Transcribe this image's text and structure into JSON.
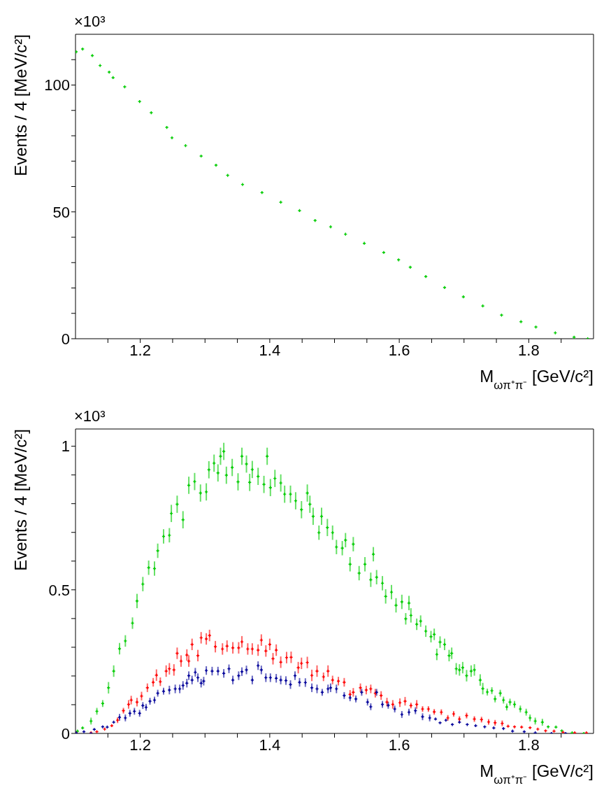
{
  "chart_data": [
    {
      "type": "scatter",
      "marker": "cross",
      "xlabel": "M$_{ωπ⁺π⁻}$ [GeV/c²]",
      "ylabel": "Events / 4 [MeV/c²]",
      "annotations": [
        "×10³"
      ],
      "xlim": [
        1.1,
        1.9
      ],
      "ylim": [
        0,
        120
      ],
      "xticks": [
        {
          "value": 1.15,
          "label": null
        },
        1.2,
        {
          "value": 1.25,
          "label": null
        },
        {
          "value": 1.3,
          "label": null
        },
        {
          "value": 1.35,
          "label": null
        },
        1.4,
        {
          "value": 1.45,
          "label": null
        },
        {
          "value": 1.5,
          "label": null
        },
        {
          "value": 1.55,
          "label": null
        },
        1.6,
        {
          "value": 1.65,
          "label": null
        },
        {
          "value": 1.7,
          "label": null
        },
        {
          "value": 1.75,
          "label": null
        },
        1.8,
        {
          "value": 1.85,
          "label": null
        }
      ],
      "yticks": [
        0,
        {
          "value": 10,
          "label": null
        },
        {
          "value": 20,
          "label": null
        },
        {
          "value": 30,
          "label": null
        },
        {
          "value": 40,
          "label": null
        },
        50,
        {
          "value": 60,
          "label": null
        },
        {
          "value": 70,
          "label": null
        },
        {
          "value": 80,
          "label": null
        },
        {
          "value": 90,
          "label": null
        },
        100,
        {
          "value": 110,
          "label": null
        }
      ],
      "series": [
        {
          "color": "#00cc00",
          "x": [
            1.101,
            1.111,
            1.126,
            1.138,
            1.152,
            1.158,
            1.176,
            1.199,
            1.217,
            1.241,
            1.249,
            1.27,
            1.294,
            1.317,
            1.335,
            1.358,
            1.388,
            1.417,
            1.446,
            1.47,
            1.494,
            1.517,
            1.546,
            1.576,
            1.599,
            1.617,
            1.641,
            1.67,
            1.699,
            1.729,
            1.758,
            1.788,
            1.811,
            1.841,
            1.87,
            1.891
          ],
          "values": [
            113.1,
            114.2,
            111.6,
            107.7,
            105.1,
            102.9,
            99.3,
            93.5,
            89.1,
            83.3,
            79.2,
            76.1,
            72.0,
            68.4,
            64.4,
            60.8,
            57.6,
            53.8,
            50.5,
            46.6,
            44.1,
            41.2,
            37.6,
            34.0,
            31.1,
            28.2,
            24.5,
            20.2,
            16.5,
            12.9,
            9.3,
            6.7,
            4.6,
            2.3,
            0.6,
            0
          ]
        }
      ]
    },
    {
      "type": "scatter",
      "marker": "cross",
      "xlabel": "M$_{ωπ⁺π⁻}$ [GeV/c²]",
      "ylabel": "Events / 4 [MeV/c²]",
      "annotations": [
        "×10³"
      ],
      "xlim": [
        1.1,
        1.9
      ],
      "ylim": [
        0,
        1.06
      ],
      "xticks": [
        {
          "value": 1.15,
          "label": null
        },
        1.2,
        {
          "value": 1.25,
          "label": null
        },
        {
          "value": 1.3,
          "label": null
        },
        {
          "value": 1.35,
          "label": null
        },
        1.4,
        {
          "value": 1.45,
          "label": null
        },
        {
          "value": 1.5,
          "label": null
        },
        {
          "value": 1.55,
          "label": null
        },
        1.6,
        {
          "value": 1.65,
          "label": null
        },
        {
          "value": 1.7,
          "label": null
        },
        {
          "value": 1.75,
          "label": null
        },
        1.8,
        {
          "value": 1.85,
          "label": null
        }
      ],
      "yticks": [
        0,
        {
          "value": 0.1,
          "label": null
        },
        {
          "value": 0.2,
          "label": null
        },
        {
          "value": 0.3,
          "label": null
        },
        {
          "value": 0.4,
          "label": null
        },
        0.5,
        {
          "value": 0.6,
          "label": null
        },
        {
          "value": 0.7,
          "label": null
        },
        {
          "value": 0.8,
          "label": null
        },
        {
          "value": 0.9,
          "label": null
        },
        1
      ],
      "series": [
        {
          "color": "#00cc00",
          "x": [
            1.103,
            1.111,
            1.124,
            1.133,
            1.142,
            1.151,
            1.159,
            1.168,
            1.177,
            1.188,
            1.195,
            1.204,
            1.213,
            1.222,
            1.227,
            1.236,
            1.245,
            1.248,
            1.257,
            1.266,
            1.275,
            1.284,
            1.293,
            1.302,
            1.306,
            1.314,
            1.32,
            1.324,
            1.329,
            1.333,
            1.342,
            1.351,
            1.357,
            1.364,
            1.369,
            1.373,
            1.382,
            1.391,
            1.396,
            1.401,
            1.408,
            1.417,
            1.423,
            1.432,
            1.44,
            1.449,
            1.458,
            1.462,
            1.467,
            1.476,
            1.48,
            1.489,
            1.497,
            1.503,
            1.512,
            1.517,
            1.524,
            1.529,
            1.538,
            1.547,
            1.556,
            1.56,
            1.565,
            1.574,
            1.579,
            1.588,
            1.595,
            1.604,
            1.61,
            1.615,
            1.618,
            1.627,
            1.633,
            1.641,
            1.649,
            1.654,
            1.658,
            1.663,
            1.67,
            1.677,
            1.681,
            1.688,
            1.693,
            1.698,
            1.704,
            1.711,
            1.716,
            1.725,
            1.729,
            1.736,
            1.743,
            1.748,
            1.756,
            1.761,
            1.766,
            1.771,
            1.778,
            1.787,
            1.796,
            1.802,
            1.81,
            1.821,
            1.83,
            1.842,
            1.851,
            1.867,
            1.885
          ],
          "values": [
            0.008,
            0.019,
            0.043,
            0.077,
            0.104,
            0.159,
            0.217,
            0.295,
            0.322,
            0.384,
            0.461,
            0.52,
            0.577,
            0.574,
            0.636,
            0.686,
            0.69,
            0.766,
            0.798,
            0.744,
            0.864,
            0.877,
            0.837,
            0.841,
            0.918,
            0.941,
            0.907,
            0.965,
            0.982,
            0.899,
            0.926,
            0.876,
            0.965,
            0.938,
            0.874,
            0.919,
            0.895,
            0.867,
            0.965,
            0.856,
            0.888,
            0.872,
            0.833,
            0.833,
            0.81,
            0.779,
            0.837,
            0.798,
            0.756,
            0.699,
            0.756,
            0.717,
            0.699,
            0.649,
            0.645,
            0.673,
            0.589,
            0.659,
            0.558,
            0.589,
            0.535,
            0.624,
            0.544,
            0.523,
            0.477,
            0.492,
            0.446,
            0.458,
            0.399,
            0.454,
            0.411,
            0.38,
            0.391,
            0.356,
            0.337,
            0.345,
            0.275,
            0.318,
            0.31,
            0.271,
            0.279,
            0.225,
            0.221,
            0.229,
            0.201,
            0.217,
            0.221,
            0.186,
            0.156,
            0.144,
            0.149,
            0.12,
            0.14,
            0.116,
            0.092,
            0.109,
            0.101,
            0.085,
            0.074,
            0.054,
            0.043,
            0.039,
            0.023,
            0.022,
            0.009,
            0.002,
            0
          ],
          "errors": [
            null,
            null,
            0.012,
            0.012,
            0.012,
            0.02,
            0.02,
            0.02,
            0.02,
            0.02,
            0.025,
            0.025,
            0.025,
            0.025,
            0.025,
            0.025,
            0.025,
            0.03,
            0.03,
            0.03,
            0.03,
            0.03,
            0.03,
            0.03,
            0.03,
            0.03,
            0.03,
            0.03,
            0.03,
            0.03,
            0.03,
            0.03,
            0.03,
            0.03,
            0.03,
            0.03,
            0.03,
            0.03,
            0.03,
            0.03,
            0.03,
            0.03,
            0.03,
            0.03,
            0.03,
            0.03,
            0.03,
            0.03,
            0.03,
            0.025,
            0.03,
            0.03,
            0.025,
            0.025,
            0.025,
            0.025,
            0.025,
            0.025,
            0.025,
            0.025,
            0.025,
            0.025,
            0.025,
            0.025,
            0.025,
            0.025,
            0.025,
            0.025,
            0.02,
            0.025,
            0.025,
            0.02,
            0.02,
            0.02,
            0.02,
            0.02,
            0.02,
            0.02,
            0.02,
            0.02,
            0.02,
            0.02,
            0.02,
            0.02,
            0.02,
            0.02,
            0.02,
            0.02,
            0.02,
            0.012,
            0.012,
            0.012,
            0.012,
            0.012,
            0.012,
            0.012,
            0.012,
            0.012,
            0.012,
            0.012,
            0.012,
            0.012,
            null,
            null,
            null,
            null,
            null
          ]
        },
        {
          "color": "#ff0000",
          "x": [
            1.101,
            1.124,
            1.133,
            1.145,
            1.156,
            1.165,
            1.174,
            1.182,
            1.186,
            1.195,
            1.202,
            1.211,
            1.22,
            1.225,
            1.231,
            1.24,
            1.245,
            1.252,
            1.257,
            1.263,
            1.272,
            1.275,
            1.28,
            1.289,
            1.294,
            1.302,
            1.307,
            1.316,
            1.327,
            1.334,
            1.343,
            1.352,
            1.357,
            1.366,
            1.373,
            1.382,
            1.387,
            1.394,
            1.4,
            1.405,
            1.41,
            1.417,
            1.426,
            1.433,
            1.444,
            1.449,
            1.458,
            1.465,
            1.473,
            1.483,
            1.49,
            1.497,
            1.506,
            1.515,
            1.524,
            1.529,
            1.54,
            1.549,
            1.556,
            1.563,
            1.572,
            1.581,
            1.59,
            1.601,
            1.609,
            1.618,
            1.627,
            1.636,
            1.645,
            1.654,
            1.665,
            1.675,
            1.684,
            1.693,
            1.704,
            1.716,
            1.727,
            1.738,
            1.748,
            1.759,
            1.768,
            1.778,
            1.789,
            1.802,
            1.814,
            1.826,
            1.839,
            1.853,
            1.871,
            1.889
          ],
          "values": [
            0.002,
            0.002,
            0.006,
            0.015,
            0.027,
            0.046,
            0.079,
            0.101,
            0.116,
            0.109,
            0.13,
            0.159,
            0.178,
            0.203,
            0.18,
            0.217,
            0.225,
            0.221,
            0.279,
            0.252,
            0.273,
            0.252,
            0.31,
            0.271,
            0.333,
            0.329,
            0.341,
            0.302,
            0.294,
            0.304,
            0.298,
            0.298,
            0.319,
            0.294,
            0.294,
            0.29,
            0.325,
            0.287,
            0.31,
            0.26,
            0.29,
            0.248,
            0.264,
            0.265,
            0.229,
            0.244,
            0.247,
            0.202,
            0.217,
            0.197,
            0.217,
            0.186,
            0.182,
            0.178,
            0.136,
            0.143,
            0.159,
            0.151,
            0.155,
            0.14,
            0.132,
            0.109,
            0.101,
            0.107,
            0.112,
            0.097,
            0.101,
            0.085,
            0.085,
            0.075,
            0.074,
            0.054,
            0.068,
            0.05,
            0.062,
            0.05,
            0.048,
            0.04,
            0.037,
            0.035,
            0.025,
            0.023,
            0.022,
            0.02,
            0.015,
            0.009,
            0.008,
            0.004,
            0.002,
            0.002
          ],
          "errors": [
            null,
            null,
            null,
            null,
            null,
            0.01,
            0.01,
            0.015,
            0.015,
            0.015,
            0.015,
            0.015,
            0.015,
            0.02,
            0.015,
            0.02,
            0.02,
            0.02,
            0.02,
            0.02,
            0.02,
            0.02,
            0.02,
            0.02,
            0.02,
            0.02,
            0.02,
            0.02,
            0.02,
            0.02,
            0.02,
            0.02,
            0.02,
            0.02,
            0.02,
            0.02,
            0.02,
            0.02,
            0.02,
            0.02,
            0.02,
            0.02,
            0.02,
            0.02,
            0.02,
            0.02,
            0.02,
            0.02,
            0.02,
            0.015,
            0.02,
            0.015,
            0.015,
            0.015,
            0.015,
            0.015,
            0.015,
            0.015,
            0.015,
            0.015,
            0.015,
            0.015,
            0.015,
            0.015,
            0.015,
            0.01,
            0.015,
            0.01,
            0.01,
            0.01,
            0.01,
            0.01,
            0.01,
            0.01,
            0.01,
            0.01,
            0.01,
            0.01,
            0.01,
            0.01,
            null,
            null,
            null,
            null,
            null,
            null,
            null,
            null,
            null,
            null
          ]
        },
        {
          "color": "#000099",
          "x": [
            1.101,
            1.113,
            1.124,
            1.129,
            1.142,
            1.149,
            1.159,
            1.168,
            1.177,
            1.184,
            1.191,
            1.199,
            1.204,
            1.209,
            1.215,
            1.222,
            1.227,
            1.236,
            1.245,
            1.254,
            1.261,
            1.266,
            1.272,
            1.275,
            1.28,
            1.285,
            1.289,
            1.294,
            1.298,
            1.302,
            1.311,
            1.32,
            1.329,
            1.337,
            1.343,
            1.352,
            1.357,
            1.364,
            1.373,
            1.382,
            1.387,
            1.394,
            1.401,
            1.41,
            1.417,
            1.425,
            1.432,
            1.439,
            1.446,
            1.455,
            1.465,
            1.473,
            1.481,
            1.49,
            1.494,
            1.503,
            1.515,
            1.524,
            1.533,
            1.542,
            1.551,
            1.556,
            1.565,
            1.574,
            1.583,
            1.593,
            1.604,
            1.615,
            1.625,
            1.636,
            1.647,
            1.656,
            1.663,
            1.672,
            1.682,
            1.693,
            1.705,
            1.718,
            1.732,
            1.746,
            1.761,
            1.775,
            1.793,
            1.81,
            1.835,
            1.857
          ],
          "values": [
            0.002,
            0.006,
            0,
            0.014,
            0.023,
            0.022,
            0.039,
            0.056,
            0.054,
            0.07,
            0.077,
            0.07,
            0.097,
            0.091,
            0.112,
            0.116,
            0.14,
            0.147,
            0.151,
            0.155,
            0.155,
            0.167,
            0.175,
            0.201,
            0.186,
            0.213,
            0.194,
            0.175,
            0.182,
            0.219,
            0.217,
            0.217,
            0.209,
            0.225,
            0.186,
            0.201,
            0.215,
            0.221,
            0.186,
            0.236,
            0.221,
            0.194,
            0.194,
            0.192,
            0.186,
            0.184,
            0.17,
            0.201,
            0.178,
            0.177,
            0.159,
            0.155,
            0.143,
            0.155,
            0.159,
            0.155,
            0.132,
            0.124,
            0.12,
            0.143,
            0.109,
            0.093,
            0.143,
            0.101,
            0.098,
            0.085,
            0.066,
            0.074,
            0.079,
            0.058,
            0.054,
            0.05,
            0.037,
            0.046,
            0.031,
            0.039,
            0.031,
            0.027,
            0.023,
            0.019,
            0.017,
            0.008,
            0.006,
            0.002,
            0,
            0
          ],
          "errors": [
            null,
            null,
            null,
            null,
            null,
            null,
            null,
            0.012,
            0.012,
            0.012,
            0.012,
            0.012,
            0.012,
            0.012,
            0.012,
            0.012,
            0.012,
            0.012,
            0.015,
            0.015,
            0.015,
            0.015,
            0.015,
            0.015,
            0.015,
            0.015,
            0.015,
            0.015,
            0.015,
            0.015,
            0.015,
            0.015,
            0.015,
            0.015,
            0.015,
            0.015,
            0.015,
            0.015,
            0.015,
            0.015,
            0.015,
            0.015,
            0.015,
            0.015,
            0.015,
            0.015,
            0.015,
            0.015,
            0.015,
            0.015,
            0.015,
            0.015,
            0.012,
            0.015,
            0.015,
            0.015,
            0.012,
            0.012,
            0.012,
            0.012,
            0.012,
            0.012,
            0.012,
            0.012,
            0.012,
            0.012,
            0.012,
            0.012,
            0.012,
            0.012,
            0.012,
            null,
            null,
            null,
            null,
            null,
            null,
            null,
            null,
            null,
            null,
            null,
            null,
            null,
            null,
            null
          ]
        }
      ]
    }
  ]
}
